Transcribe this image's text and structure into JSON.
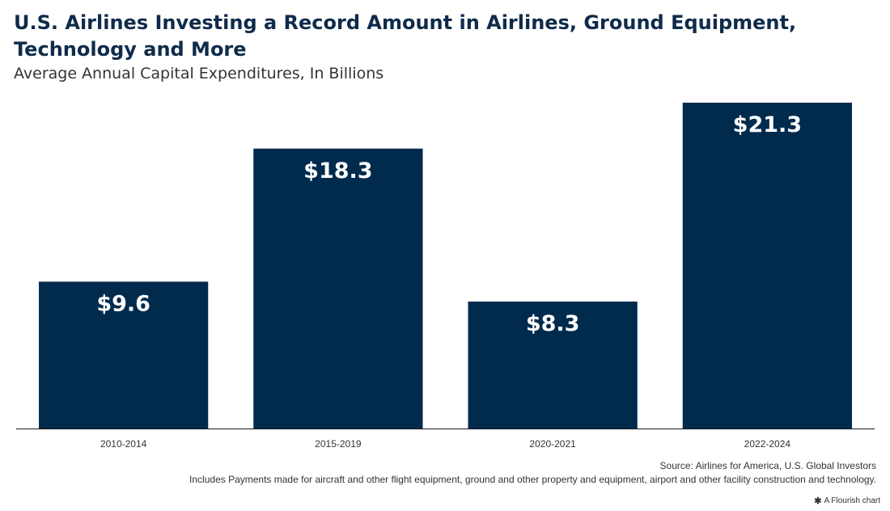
{
  "header": {
    "title": "U.S. Airlines Investing a Record Amount in Airlines, Ground Equipment, Technology and More",
    "subtitle": "Average Annual Capital Expenditures, In Billions"
  },
  "chart_data": {
    "type": "bar",
    "categories": [
      "2010-2014",
      "2015-2019",
      "2020-2021",
      "2022-2024"
    ],
    "values": [
      9.6,
      18.3,
      8.3,
      21.3
    ],
    "value_labels": [
      "$9.6",
      "$18.3",
      "$8.3",
      "$21.3"
    ],
    "title": "U.S. Airlines Investing a Record Amount in Airlines, Ground Equipment, Technology and More",
    "subtitle": "Average Annual Capital Expenditures, In Billions",
    "xlabel": "",
    "ylabel": "",
    "ylim": [
      0,
      21.3
    ],
    "grid": false,
    "legend": "none",
    "bar_color": "#002b4d"
  },
  "footer": {
    "source": "Source: Airlines for America, U.S. Global Investors",
    "note": "Includes Payments made for aircraft and other flight equipment, ground and other property and equipment, airport and other facility construction and technology.",
    "flourish_label": "A Flourish chart",
    "flourish_icon": "flourish-star-icon"
  }
}
